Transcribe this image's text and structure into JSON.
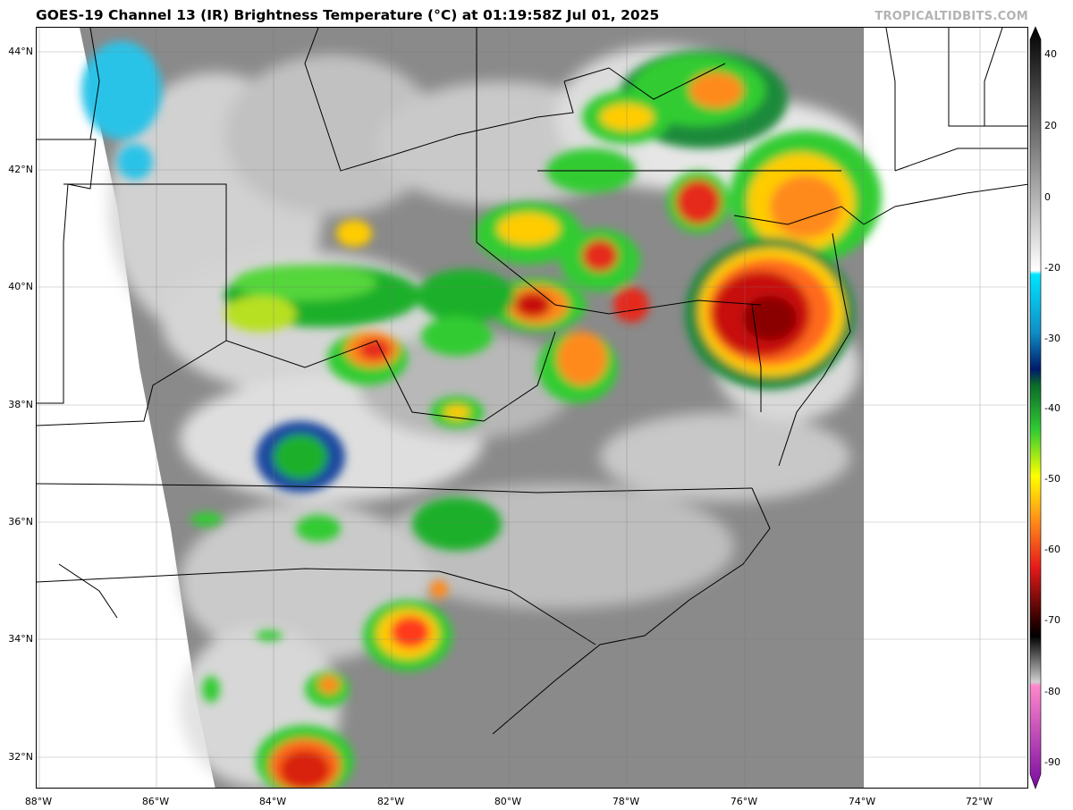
{
  "header": {
    "title": "GOES-19 Channel 13 (IR) Brightness Temperature (°C) at 01:19:58Z Jul 01, 2025",
    "credit": "TROPICALTIDBITS.COM"
  },
  "map": {
    "lon_labels": [
      "88°W",
      "86°W",
      "84°W",
      "82°W",
      "80°W",
      "78°W",
      "76°W",
      "74°W",
      "72°W"
    ],
    "lat_labels": [
      "44°N",
      "42°N",
      "40°N",
      "38°N",
      "36°N",
      "34°N",
      "32°N"
    ],
    "projection": "lat-lon",
    "lon_range": [
      -88,
      -71.2
    ],
    "lat_range": [
      31.5,
      44.4
    ]
  },
  "colorbar": {
    "range": [
      -90,
      40
    ],
    "tick_labels": [
      "40",
      "20",
      "0",
      "-20",
      "-30",
      "-40",
      "-50",
      "-60",
      "-70",
      "-80",
      "-90"
    ]
  }
}
